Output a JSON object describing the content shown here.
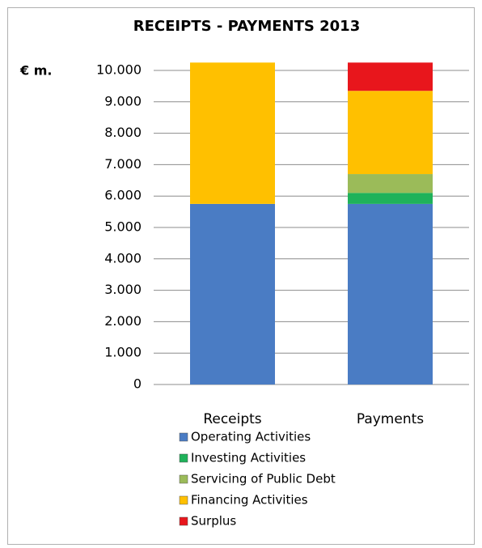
{
  "chart_data": {
    "type": "stacked_bar",
    "title": "RECEIPTS - PAYMENTS 2013",
    "y_label": "€ m.",
    "categories": [
      "Receipts",
      "Payments"
    ],
    "series": [
      {
        "name": "Operating Activities",
        "color": "#4a7cc4",
        "values": [
          5750,
          5750
        ]
      },
      {
        "name": "Investing Activities",
        "color": "#1fb25a",
        "values": [
          0,
          350
        ]
      },
      {
        "name": "Servicing of Public Debt",
        "color": "#9bbb59",
        "values": [
          0,
          600
        ]
      },
      {
        "name": "Financing Activities",
        "color": "#ffc000",
        "values": [
          4500,
          2650
        ]
      },
      {
        "name": "Surplus",
        "color": "#e8161c",
        "values": [
          0,
          900
        ]
      }
    ],
    "ylim": [
      0,
      10000
    ],
    "yticks": [
      0,
      {
        "value": 1000,
        "label": "1.000"
      },
      {
        "value": 2000,
        "label": "2.000"
      },
      {
        "value": 3000,
        "label": "3.000"
      },
      {
        "value": 4000,
        "label": "4.000"
      },
      {
        "value": 5000,
        "label": "5.000"
      },
      {
        "value": 6000,
        "label": "6.000"
      },
      {
        "value": 7000,
        "label": "7.000"
      },
      {
        "value": 8000,
        "label": "8.000"
      },
      {
        "value": 9000,
        "label": "9.000"
      },
      {
        "value": 10000,
        "label": "10.000"
      }
    ],
    "grid": true,
    "legend": "bottom"
  }
}
